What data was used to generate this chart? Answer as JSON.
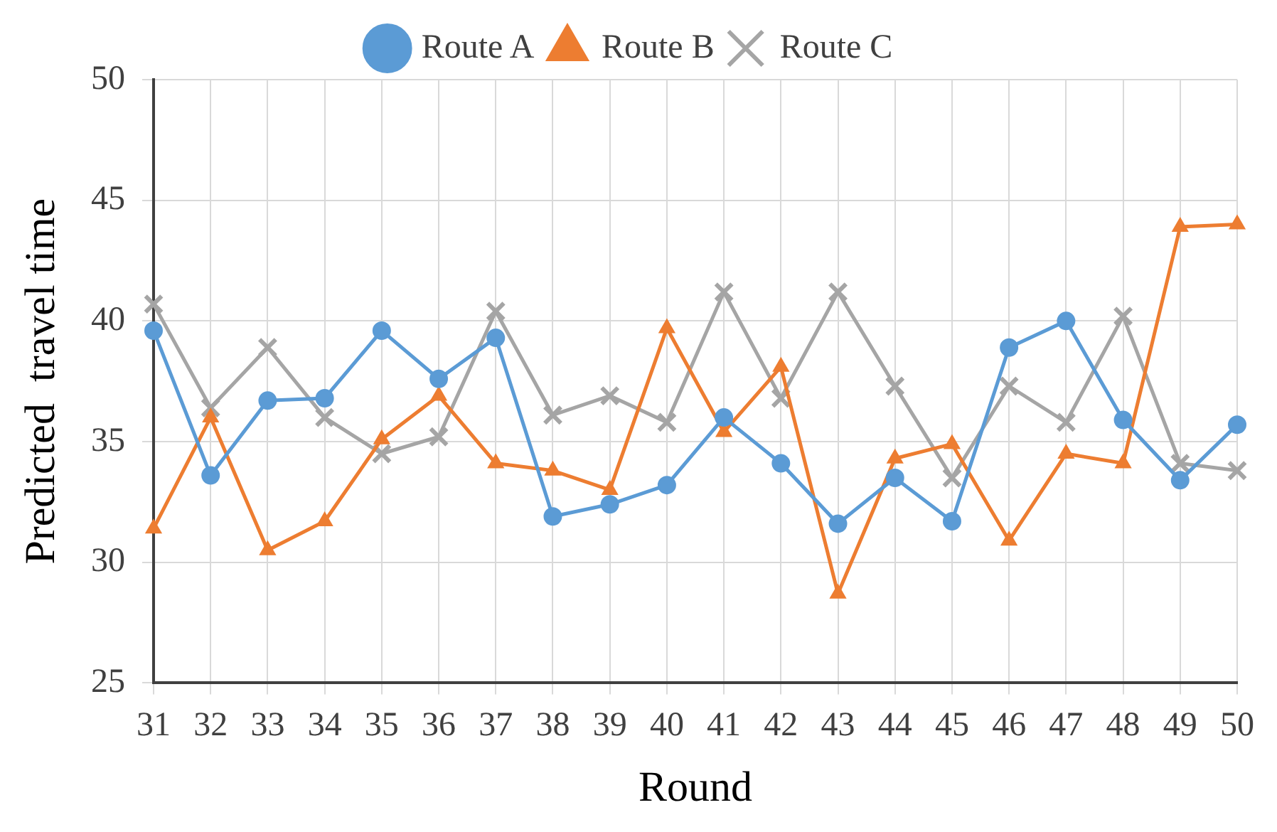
{
  "chart_data": {
    "type": "line",
    "xlabel": "Round",
    "ylabel": "Predicted  travel time",
    "categories": [
      "31",
      "32",
      "33",
      "34",
      "35",
      "36",
      "37",
      "38",
      "39",
      "40",
      "41",
      "42",
      "43",
      "44",
      "45",
      "46",
      "47",
      "48",
      "49",
      "50"
    ],
    "series": [
      {
        "name": "Route A",
        "color": "#5b9bd5",
        "marker": "circle",
        "values": [
          39.6,
          33.6,
          36.7,
          36.8,
          39.6,
          37.6,
          39.3,
          31.9,
          32.4,
          33.2,
          36.0,
          34.1,
          31.6,
          33.5,
          31.7,
          38.9,
          40.0,
          35.9,
          33.4,
          35.7
        ]
      },
      {
        "name": "Route B",
        "color": "#ed7d31",
        "marker": "triangle",
        "values": [
          31.4,
          36.0,
          30.5,
          31.7,
          35.1,
          36.9,
          34.1,
          33.8,
          33.0,
          39.7,
          35.4,
          38.1,
          28.7,
          34.3,
          34.9,
          30.9,
          34.5,
          34.1,
          43.9,
          44.0
        ]
      },
      {
        "name": "Route C",
        "color": "#a5a5a5",
        "marker": "cross",
        "values": [
          40.7,
          36.4,
          38.9,
          36.0,
          34.5,
          35.2,
          40.4,
          36.1,
          36.9,
          35.8,
          41.2,
          36.8,
          41.2,
          37.3,
          33.5,
          37.3,
          35.8,
          40.2,
          34.1,
          33.8
        ]
      }
    ],
    "ylim": [
      25,
      50
    ],
    "yticks": [
      25,
      30,
      35,
      40,
      45,
      50
    ],
    "grid": true,
    "legend": "top"
  }
}
